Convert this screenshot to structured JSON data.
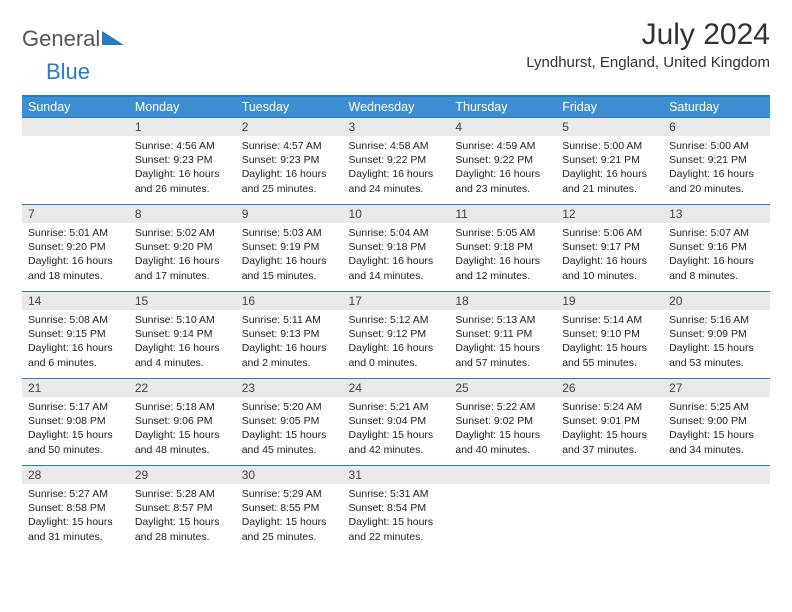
{
  "logo": {
    "text1": "General",
    "text2": "Blue"
  },
  "title": "July 2024",
  "location": "Lyndhurst, England, United Kingdom",
  "colors": {
    "header_bg": "#3d8fd1",
    "header_text": "#ffffff",
    "rule": "#2a7ac0",
    "daynum_bg": "#e9e9e9",
    "logo_accent": "#2a7ac0"
  },
  "dayHeaders": [
    "Sunday",
    "Monday",
    "Tuesday",
    "Wednesday",
    "Thursday",
    "Friday",
    "Saturday"
  ],
  "firstDayOffset": 1,
  "days": [
    {
      "n": 1,
      "sr": "4:56 AM",
      "ss": "9:23 PM",
      "dl": "16 hours and 26 minutes."
    },
    {
      "n": 2,
      "sr": "4:57 AM",
      "ss": "9:23 PM",
      "dl": "16 hours and 25 minutes."
    },
    {
      "n": 3,
      "sr": "4:58 AM",
      "ss": "9:22 PM",
      "dl": "16 hours and 24 minutes."
    },
    {
      "n": 4,
      "sr": "4:59 AM",
      "ss": "9:22 PM",
      "dl": "16 hours and 23 minutes."
    },
    {
      "n": 5,
      "sr": "5:00 AM",
      "ss": "9:21 PM",
      "dl": "16 hours and 21 minutes."
    },
    {
      "n": 6,
      "sr": "5:00 AM",
      "ss": "9:21 PM",
      "dl": "16 hours and 20 minutes."
    },
    {
      "n": 7,
      "sr": "5:01 AM",
      "ss": "9:20 PM",
      "dl": "16 hours and 18 minutes."
    },
    {
      "n": 8,
      "sr": "5:02 AM",
      "ss": "9:20 PM",
      "dl": "16 hours and 17 minutes."
    },
    {
      "n": 9,
      "sr": "5:03 AM",
      "ss": "9:19 PM",
      "dl": "16 hours and 15 minutes."
    },
    {
      "n": 10,
      "sr": "5:04 AM",
      "ss": "9:18 PM",
      "dl": "16 hours and 14 minutes."
    },
    {
      "n": 11,
      "sr": "5:05 AM",
      "ss": "9:18 PM",
      "dl": "16 hours and 12 minutes."
    },
    {
      "n": 12,
      "sr": "5:06 AM",
      "ss": "9:17 PM",
      "dl": "16 hours and 10 minutes."
    },
    {
      "n": 13,
      "sr": "5:07 AM",
      "ss": "9:16 PM",
      "dl": "16 hours and 8 minutes."
    },
    {
      "n": 14,
      "sr": "5:08 AM",
      "ss": "9:15 PM",
      "dl": "16 hours and 6 minutes."
    },
    {
      "n": 15,
      "sr": "5:10 AM",
      "ss": "9:14 PM",
      "dl": "16 hours and 4 minutes."
    },
    {
      "n": 16,
      "sr": "5:11 AM",
      "ss": "9:13 PM",
      "dl": "16 hours and 2 minutes."
    },
    {
      "n": 17,
      "sr": "5:12 AM",
      "ss": "9:12 PM",
      "dl": "16 hours and 0 minutes."
    },
    {
      "n": 18,
      "sr": "5:13 AM",
      "ss": "9:11 PM",
      "dl": "15 hours and 57 minutes."
    },
    {
      "n": 19,
      "sr": "5:14 AM",
      "ss": "9:10 PM",
      "dl": "15 hours and 55 minutes."
    },
    {
      "n": 20,
      "sr": "5:16 AM",
      "ss": "9:09 PM",
      "dl": "15 hours and 53 minutes."
    },
    {
      "n": 21,
      "sr": "5:17 AM",
      "ss": "9:08 PM",
      "dl": "15 hours and 50 minutes."
    },
    {
      "n": 22,
      "sr": "5:18 AM",
      "ss": "9:06 PM",
      "dl": "15 hours and 48 minutes."
    },
    {
      "n": 23,
      "sr": "5:20 AM",
      "ss": "9:05 PM",
      "dl": "15 hours and 45 minutes."
    },
    {
      "n": 24,
      "sr": "5:21 AM",
      "ss": "9:04 PM",
      "dl": "15 hours and 42 minutes."
    },
    {
      "n": 25,
      "sr": "5:22 AM",
      "ss": "9:02 PM",
      "dl": "15 hours and 40 minutes."
    },
    {
      "n": 26,
      "sr": "5:24 AM",
      "ss": "9:01 PM",
      "dl": "15 hours and 37 minutes."
    },
    {
      "n": 27,
      "sr": "5:25 AM",
      "ss": "9:00 PM",
      "dl": "15 hours and 34 minutes."
    },
    {
      "n": 28,
      "sr": "5:27 AM",
      "ss": "8:58 PM",
      "dl": "15 hours and 31 minutes."
    },
    {
      "n": 29,
      "sr": "5:28 AM",
      "ss": "8:57 PM",
      "dl": "15 hours and 28 minutes."
    },
    {
      "n": 30,
      "sr": "5:29 AM",
      "ss": "8:55 PM",
      "dl": "15 hours and 25 minutes."
    },
    {
      "n": 31,
      "sr": "5:31 AM",
      "ss": "8:54 PM",
      "dl": "15 hours and 22 minutes."
    }
  ],
  "labels": {
    "sunrise": "Sunrise: ",
    "sunset": "Sunset: ",
    "daylight": "Daylight: "
  }
}
